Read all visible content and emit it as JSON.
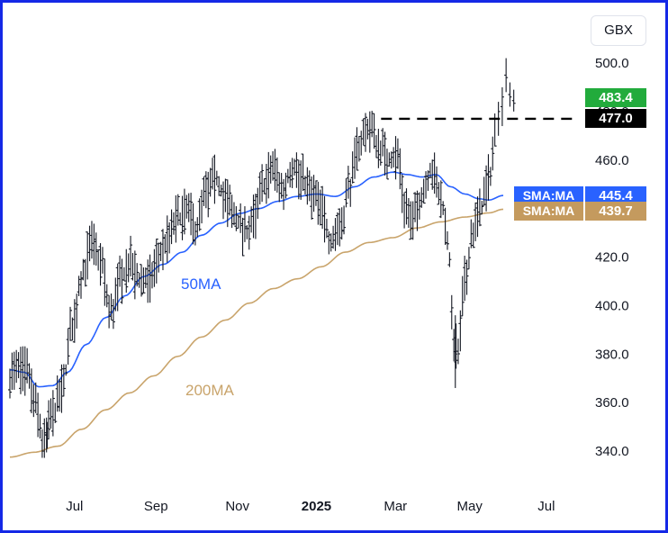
{
  "unit_label": "GBX",
  "colors": {
    "price_bars": "#131722",
    "sma50": "#2962ff",
    "sma200": "#c9a46b",
    "last_price_tag": "#22ab3c",
    "resistance_tag": "#000000",
    "sma50_tag": "#2962ff",
    "sma200_tag": "#c49a5e",
    "frame": "#1428e6"
  },
  "annotations": {
    "sma50_label": "50MA",
    "sma200_label": "200MA"
  },
  "tags": {
    "last_price": "483.4",
    "resistance": "477.0",
    "sma50_name": "SMA:MA",
    "sma50_value": "445.4",
    "sma200_name": "SMA:MA",
    "sma200_value": "439.7"
  },
  "chart_data": {
    "type": "ohlc",
    "title": "",
    "xlabel": "",
    "ylabel": "",
    "ylim": [
      332,
      512
    ],
    "y_ticks": [
      "340.0",
      "360.0",
      "380.0",
      "400.0",
      "420.0",
      "440.0",
      "460.0",
      "480.0",
      "500.0"
    ],
    "x_ticks": [
      {
        "label": "Jul",
        "pos": 0.135,
        "bold": false
      },
      {
        "label": "Sep",
        "pos": 0.305,
        "bold": false
      },
      {
        "label": "Nov",
        "pos": 0.475,
        "bold": false
      },
      {
        "label": "2025",
        "pos": 0.64,
        "bold": true
      },
      {
        "label": "Mar",
        "pos": 0.805,
        "bold": false
      },
      {
        "label": "May",
        "pos": 0.96,
        "bold": false
      },
      {
        "label": "Jul",
        "pos": 1.12,
        "bold": false
      }
    ],
    "resistance_level": 477.0,
    "price_anchors": [
      [
        0.0,
        372
      ],
      [
        0.035,
        373
      ],
      [
        0.055,
        358
      ],
      [
        0.07,
        343
      ],
      [
        0.09,
        356
      ],
      [
        0.11,
        366
      ],
      [
        0.13,
        392
      ],
      [
        0.15,
        412
      ],
      [
        0.17,
        425
      ],
      [
        0.19,
        418
      ],
      [
        0.21,
        396
      ],
      [
        0.23,
        410
      ],
      [
        0.25,
        418
      ],
      [
        0.27,
        410
      ],
      [
        0.29,
        410
      ],
      [
        0.31,
        420
      ],
      [
        0.33,
        427
      ],
      [
        0.35,
        436
      ],
      [
        0.37,
        438
      ],
      [
        0.39,
        432
      ],
      [
        0.41,
        446
      ],
      [
        0.43,
        452
      ],
      [
        0.45,
        444
      ],
      [
        0.47,
        436
      ],
      [
        0.49,
        430
      ],
      [
        0.51,
        436
      ],
      [
        0.53,
        450
      ],
      [
        0.55,
        457
      ],
      [
        0.57,
        447
      ],
      [
        0.59,
        458
      ],
      [
        0.61,
        452
      ],
      [
        0.63,
        446
      ],
      [
        0.65,
        440
      ],
      [
        0.67,
        427
      ],
      [
        0.69,
        434
      ],
      [
        0.71,
        450
      ],
      [
        0.73,
        467
      ],
      [
        0.75,
        474
      ],
      [
        0.77,
        466
      ],
      [
        0.79,
        460
      ],
      [
        0.81,
        462
      ],
      [
        0.825,
        442
      ],
      [
        0.84,
        434
      ],
      [
        0.86,
        446
      ],
      [
        0.88,
        456
      ],
      [
        0.9,
        444
      ],
      [
        0.915,
        426
      ],
      [
        0.925,
        388
      ],
      [
        0.935,
        380
      ],
      [
        0.95,
        410
      ],
      [
        0.965,
        430
      ],
      [
        0.98,
        438
      ],
      [
        1.0,
        452
      ],
      [
        1.015,
        472
      ],
      [
        1.03,
        492
      ],
      [
        1.045,
        486
      ]
    ],
    "sma50_anchors": [
      [
        0.0,
        373.5
      ],
      [
        0.03,
        372.5
      ],
      [
        0.06,
        366.5
      ],
      [
        0.09,
        367
      ],
      [
        0.12,
        372.5
      ],
      [
        0.16,
        384
      ],
      [
        0.2,
        395
      ],
      [
        0.24,
        404
      ],
      [
        0.28,
        412
      ],
      [
        0.32,
        417
      ],
      [
        0.36,
        422
      ],
      [
        0.4,
        429
      ],
      [
        0.44,
        434
      ],
      [
        0.48,
        438
      ],
      [
        0.52,
        440
      ],
      [
        0.56,
        443
      ],
      [
        0.6,
        445
      ],
      [
        0.64,
        446
      ],
      [
        0.68,
        445
      ],
      [
        0.72,
        449
      ],
      [
        0.76,
        453
      ],
      [
        0.8,
        455
      ],
      [
        0.83,
        454
      ],
      [
        0.86,
        453
      ],
      [
        0.89,
        454
      ],
      [
        0.92,
        449
      ],
      [
        0.95,
        446
      ],
      [
        0.98,
        444
      ],
      [
        1.0,
        443.5
      ],
      [
        1.03,
        445.4
      ]
    ],
    "sma200_anchors": [
      [
        0.0,
        337.5
      ],
      [
        0.05,
        339.5
      ],
      [
        0.1,
        342
      ],
      [
        0.15,
        349
      ],
      [
        0.2,
        357
      ],
      [
        0.25,
        364
      ],
      [
        0.3,
        371
      ],
      [
        0.35,
        379
      ],
      [
        0.4,
        387
      ],
      [
        0.45,
        394
      ],
      [
        0.5,
        401
      ],
      [
        0.55,
        407
      ],
      [
        0.6,
        411
      ],
      [
        0.65,
        416
      ],
      [
        0.7,
        422
      ],
      [
        0.75,
        426
      ],
      [
        0.8,
        428
      ],
      [
        0.85,
        432
      ],
      [
        0.9,
        434.5
      ],
      [
        0.95,
        436.5
      ],
      [
        1.0,
        438.2
      ],
      [
        1.03,
        439.7
      ]
    ],
    "end_bars": [
      {
        "pos": 1.02,
        "high": 484,
        "low": 470,
        "close": 480
      },
      {
        "pos": 1.028,
        "high": 490,
        "low": 474,
        "close": 486
      },
      {
        "pos": 1.036,
        "high": 502,
        "low": 488,
        "close": 494
      },
      {
        "pos": 1.044,
        "high": 492,
        "low": 482,
        "close": 486
      },
      {
        "pos": 1.052,
        "high": 489,
        "low": 480,
        "close": 483.4
      }
    ],
    "special_bars": [
      {
        "pos": 0.93,
        "high": 396,
        "low": 366,
        "close": 380
      },
      {
        "pos": 0.078,
        "high": 352,
        "low": 341,
        "close": 345
      }
    ]
  }
}
